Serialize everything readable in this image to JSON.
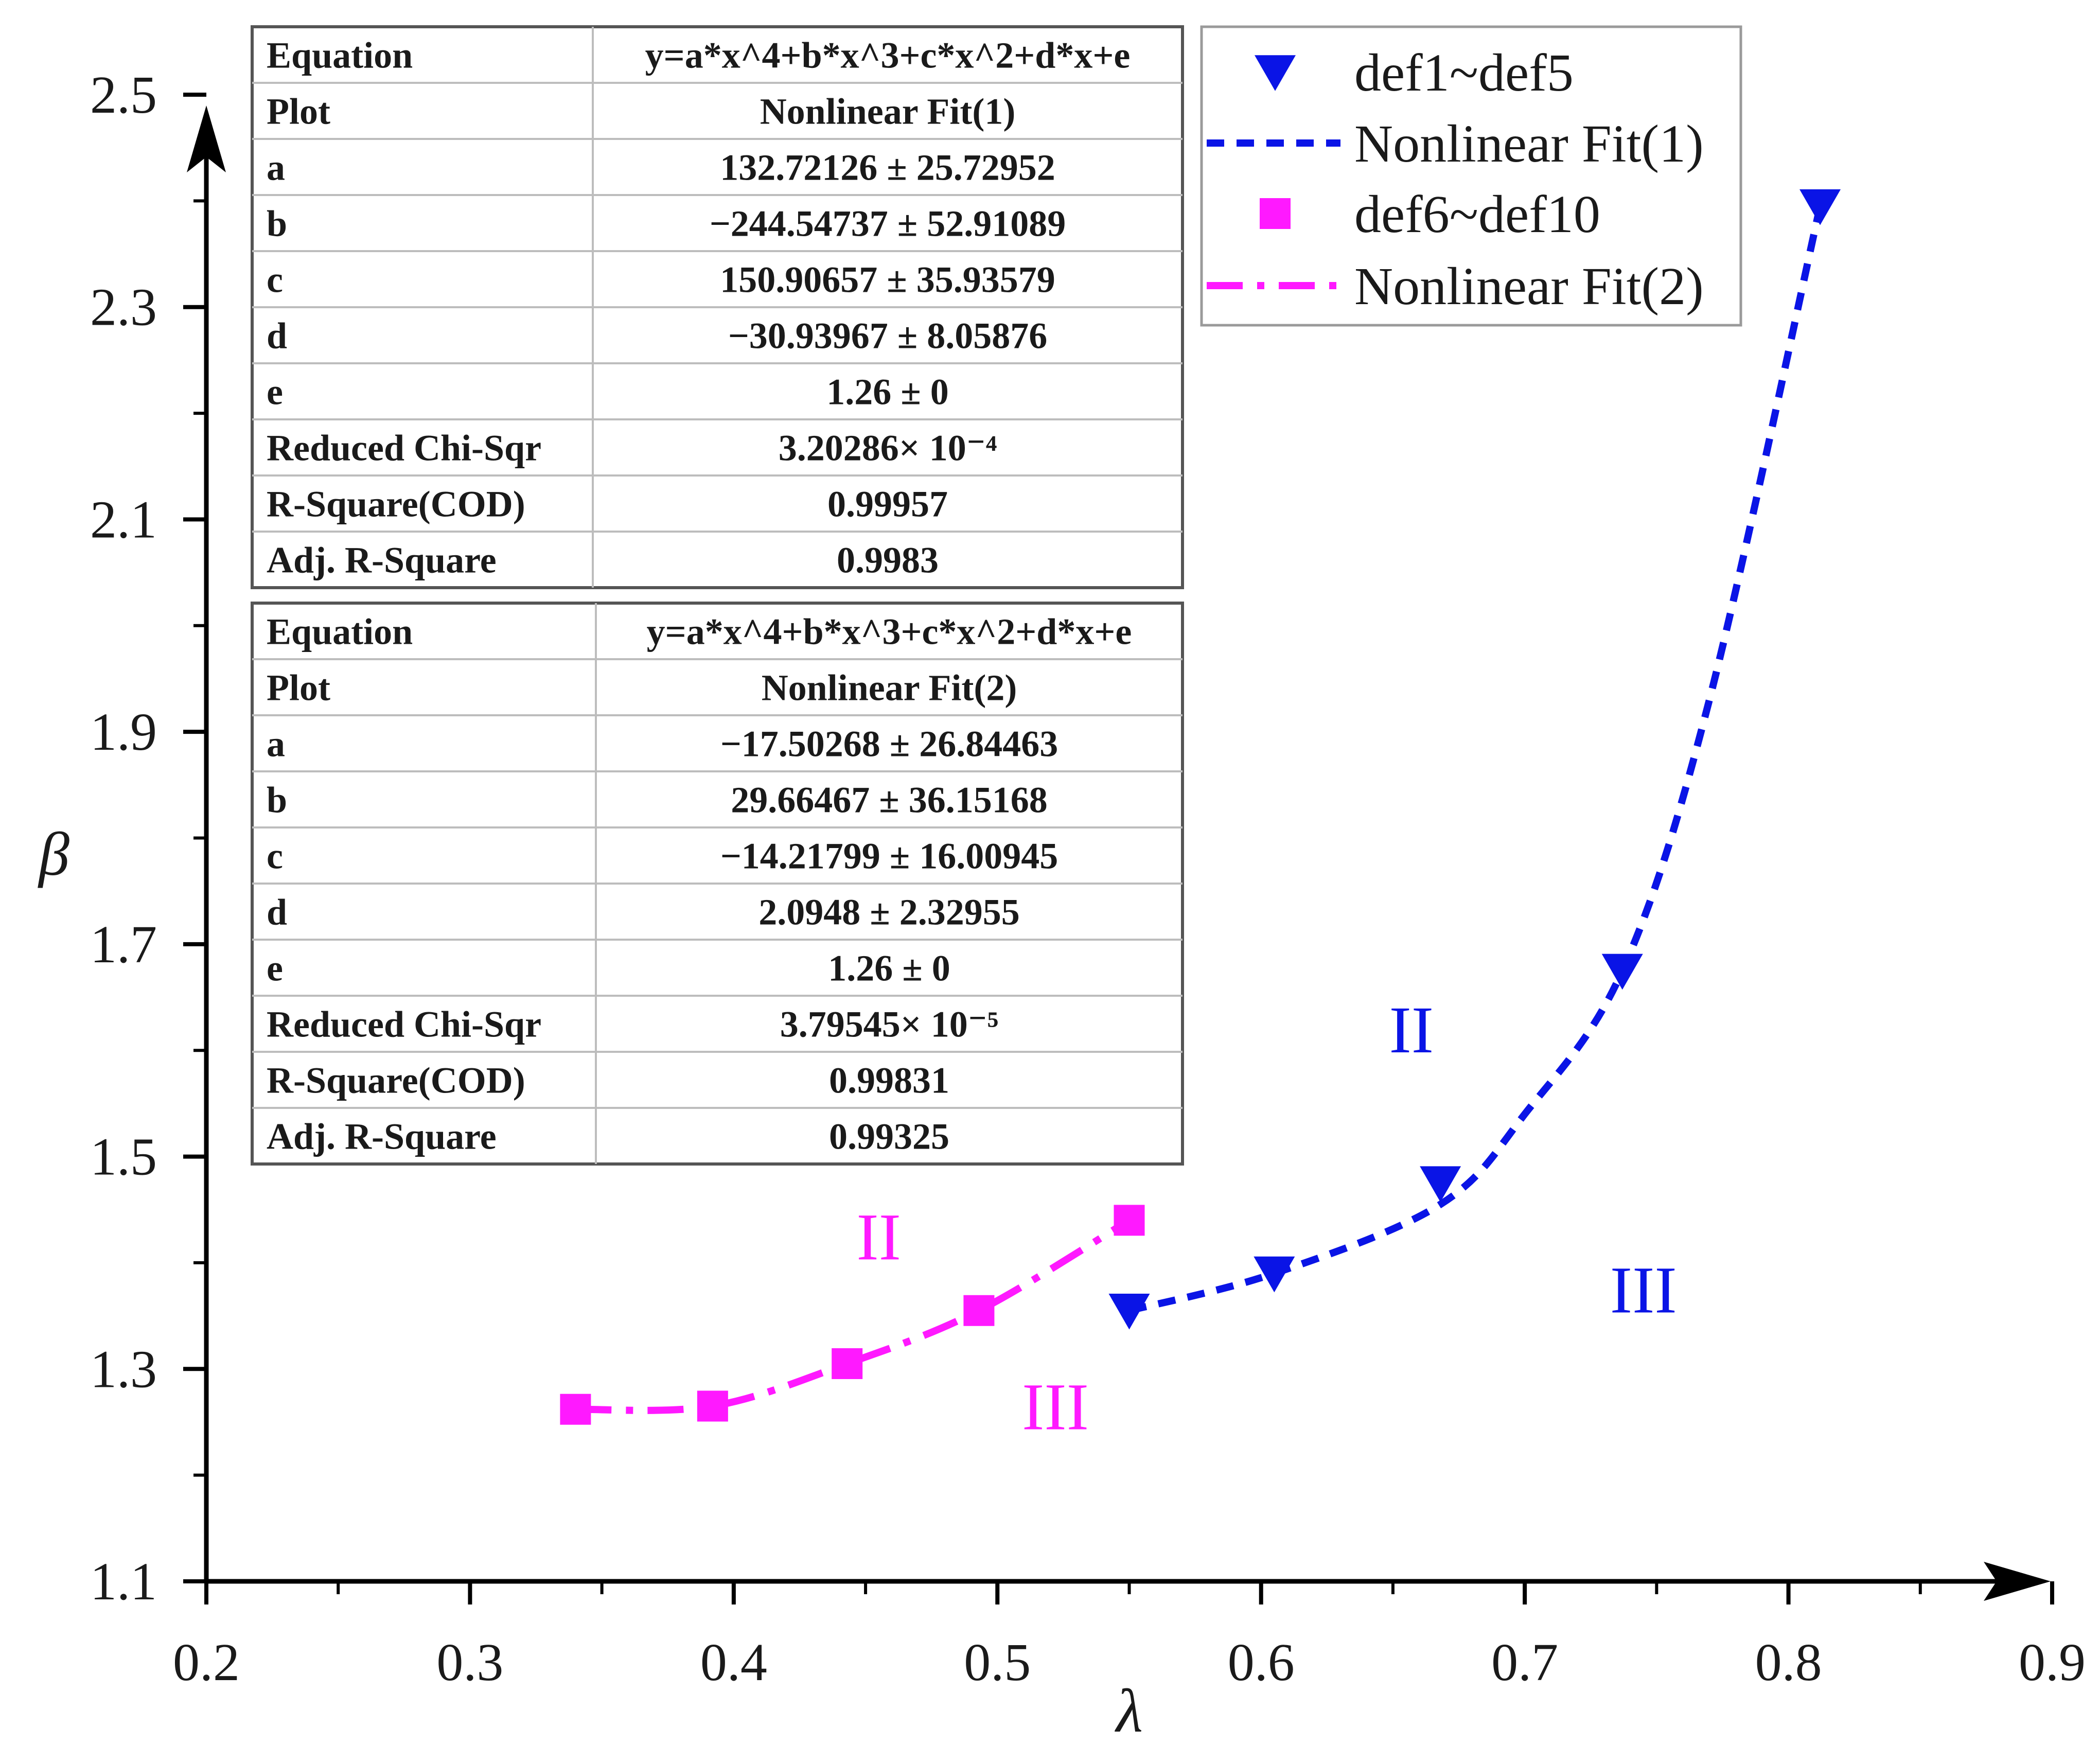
{
  "chart_data": {
    "type": "scatter",
    "title": "",
    "xlabel": "λ",
    "ylabel": "β",
    "xlim": [
      0.2,
      0.9
    ],
    "ylim": [
      1.1,
      2.5
    ],
    "xticks": [
      "0.2",
      "0.3",
      "0.4",
      "0.5",
      "0.6",
      "0.7",
      "0.8",
      "0.9"
    ],
    "yticks": [
      "1.1",
      "1.3",
      "1.5",
      "1.7",
      "1.9",
      "2.1",
      "2.3",
      "2.5"
    ],
    "legend_position": "top-right",
    "colors": {
      "series1": "#0a14e6",
      "series2": "#ff19ff",
      "axis": "#000000",
      "table_border": "#555555",
      "table_grid": "#bdbdbd"
    },
    "series": [
      {
        "name": "def1~def5",
        "marker": "triangle-down",
        "color": "#0a14e6",
        "x": [
          0.55,
          0.605,
          0.668,
          0.737,
          0.812
        ],
        "y": [
          1.355,
          1.39,
          1.475,
          1.675,
          2.395
        ]
      },
      {
        "name": "Nonlinear Fit(1)",
        "style": "dashed",
        "color": "#0a14e6",
        "x": [
          0.55,
          0.605,
          0.668,
          0.7,
          0.737,
          0.77,
          0.812
        ],
        "y": [
          1.355,
          1.39,
          1.455,
          1.54,
          1.675,
          1.93,
          2.395
        ]
      },
      {
        "name": "def6~def10",
        "marker": "square",
        "color": "#ff19ff",
        "x": [
          0.34,
          0.392,
          0.443,
          0.493,
          0.55
        ],
        "y": [
          1.262,
          1.265,
          1.305,
          1.355,
          1.44
        ]
      },
      {
        "name": "Nonlinear Fit(2)",
        "style": "dash-dot",
        "color": "#ff19ff",
        "x": [
          0.34,
          0.392,
          0.443,
          0.493,
          0.55
        ],
        "y": [
          1.262,
          1.265,
          1.305,
          1.355,
          1.44
        ]
      }
    ],
    "annotations": [
      {
        "text": "II",
        "x": 0.455,
        "y": 1.425,
        "color": "#ff19ff"
      },
      {
        "text": "III",
        "x": 0.522,
        "y": 1.265,
        "color": "#ff19ff"
      },
      {
        "text": "II",
        "x": 0.657,
        "y": 1.62,
        "color": "#0a14e6"
      },
      {
        "text": "III",
        "x": 0.745,
        "y": 1.375,
        "color": "#0a14e6"
      }
    ],
    "fit_tables": [
      {
        "rows": [
          [
            "Equation",
            "y=a*x^4+b*x^3+c*x^2+d*x+e"
          ],
          [
            "Plot",
            "Nonlinear Fit(1)"
          ],
          [
            "a",
            "132.72126 ± 25.72952"
          ],
          [
            "b",
            "−244.54737 ± 52.91089"
          ],
          [
            "c",
            "150.90657 ± 35.93579"
          ],
          [
            "d",
            "−30.93967 ± 8.05876"
          ],
          [
            "e",
            "1.26 ± 0"
          ],
          [
            "Reduced Chi-Sqr",
            "3.20286× 10⁻⁴"
          ],
          [
            "R-Square(COD)",
            "0.99957"
          ],
          [
            "Adj. R-Square",
            "0.9983"
          ]
        ]
      },
      {
        "rows": [
          [
            "Equation",
            "y=a*x^4+b*x^3+c*x^2+d*x+e"
          ],
          [
            "Plot",
            "Nonlinear Fit(2)"
          ],
          [
            "a",
            "−17.50268 ± 26.84463"
          ],
          [
            "b",
            "29.66467 ± 36.15168"
          ],
          [
            "c",
            "−14.21799 ± 16.00945"
          ],
          [
            "d",
            "2.0948 ± 2.32955"
          ],
          [
            "e",
            "1.26 ± 0"
          ],
          [
            "Reduced Chi-Sqr",
            "3.79545× 10⁻⁵"
          ],
          [
            "R-Square(COD)",
            "0.99831"
          ],
          [
            "Adj. R-Square",
            "0.99325"
          ]
        ]
      }
    ]
  }
}
